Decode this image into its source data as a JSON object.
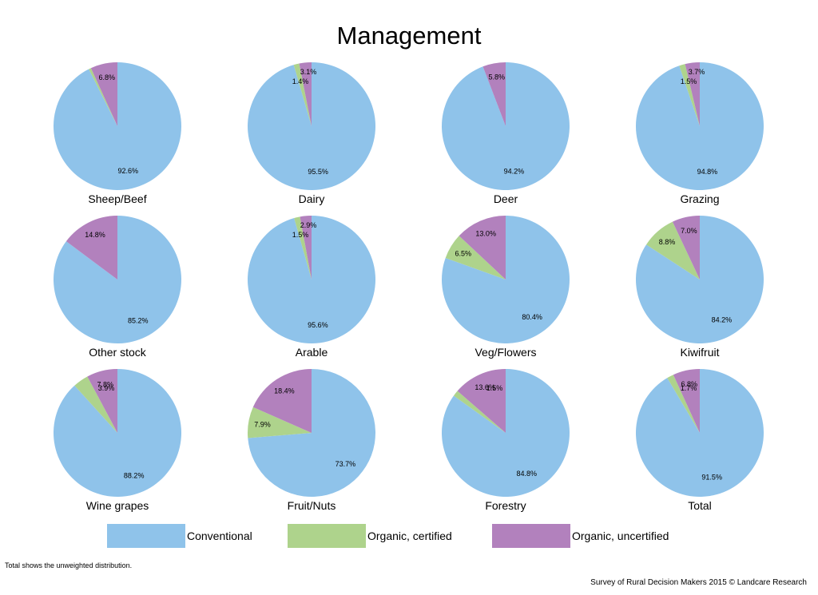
{
  "chart_data": {
    "type": "pie",
    "title": "Management",
    "legend": {
      "placement": "bottom",
      "entries": [
        {
          "label": "Conventional",
          "color": "#8fc3ea"
        },
        {
          "label": "Organic, certified",
          "color": "#aed38c"
        },
        {
          "label": "Organic, uncertified",
          "color": "#b281bd"
        }
      ]
    },
    "pies": [
      {
        "name": "Sheep/Beef",
        "values": [
          92.6,
          0.6,
          6.8
        ],
        "labels": [
          "92.6%",
          "",
          "6.8%"
        ]
      },
      {
        "name": "Dairy",
        "values": [
          95.5,
          1.4,
          3.1
        ],
        "labels": [
          "95.5%",
          "1.4%",
          "3.1%"
        ]
      },
      {
        "name": "Deer",
        "values": [
          94.2,
          0.0,
          5.8
        ],
        "labels": [
          "94.2%",
          "",
          "5.8%"
        ]
      },
      {
        "name": "Grazing",
        "values": [
          94.8,
          1.5,
          3.7
        ],
        "labels": [
          "94.8%",
          "1.5%",
          "3.7%"
        ]
      },
      {
        "name": "Other stock",
        "values": [
          85.2,
          0.0,
          14.8
        ],
        "labels": [
          "85.2%",
          "",
          "14.8%"
        ]
      },
      {
        "name": "Arable",
        "values": [
          95.6,
          1.5,
          2.9
        ],
        "labels": [
          "95.6%",
          "1.5%",
          "2.9%"
        ]
      },
      {
        "name": "Veg/Flowers",
        "values": [
          80.4,
          6.5,
          13.0
        ],
        "labels": [
          "80.4%",
          "6.5%",
          "13.0%"
        ]
      },
      {
        "name": "Kiwifruit",
        "values": [
          84.2,
          8.8,
          7.0
        ],
        "labels": [
          "84.2%",
          "8.8%",
          "7.0%"
        ]
      },
      {
        "name": "Wine grapes",
        "values": [
          88.2,
          3.9,
          7.8
        ],
        "labels": [
          "88.2%",
          "3.9%",
          "7.8%"
        ]
      },
      {
        "name": "Fruit/Nuts",
        "values": [
          73.7,
          7.9,
          18.4
        ],
        "labels": [
          "73.7%",
          "7.9%",
          "18.4%"
        ]
      },
      {
        "name": "Forestry",
        "values": [
          84.8,
          1.5,
          13.6
        ],
        "labels": [
          "84.8%",
          "1.5%",
          "13.6%"
        ]
      },
      {
        "name": "Total",
        "values": [
          91.5,
          1.7,
          6.8
        ],
        "labels": [
          "91.5%",
          "1.7%",
          "6.8%"
        ]
      }
    ]
  },
  "footer": {
    "note": "Total shows the unweighted distribution.",
    "credit": "Survey of Rural Decision Makers 2015 © Landcare Research"
  }
}
